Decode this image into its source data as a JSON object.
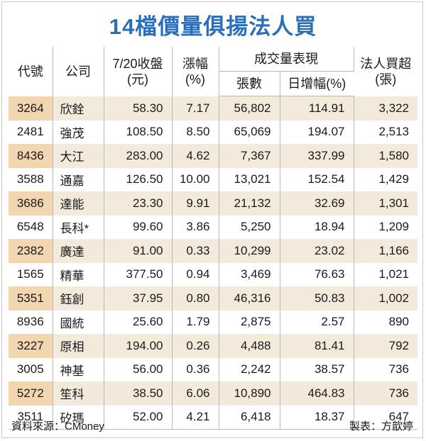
{
  "title": "14檔價量俱揚法人買",
  "headers": {
    "code": "代號",
    "company": "公司",
    "close_line1": "7/20收盤",
    "close_line2": "(元)",
    "change_line1": "漲幅",
    "change_line2": "(%)",
    "volume_group": "成交量表現",
    "volume_lots": "張數",
    "volume_increase": "日增幅(%)",
    "net_buy_line1": "法人買超",
    "net_buy_line2": "(張)"
  },
  "rows": [
    {
      "code": "3264",
      "company": "欣銓",
      "close": "58.30",
      "change": "7.17",
      "lots": "56,802",
      "increase": "114.91",
      "net_buy": "3,322"
    },
    {
      "code": "2481",
      "company": "強茂",
      "close": "108.50",
      "change": "8.50",
      "lots": "65,069",
      "increase": "194.07",
      "net_buy": "2,513"
    },
    {
      "code": "8436",
      "company": "大江",
      "close": "283.00",
      "change": "4.62",
      "lots": "7,367",
      "increase": "337.99",
      "net_buy": "1,580"
    },
    {
      "code": "3588",
      "company": "通嘉",
      "close": "126.50",
      "change": "10.00",
      "lots": "13,021",
      "increase": "152.54",
      "net_buy": "1,429"
    },
    {
      "code": "3686",
      "company": "達能",
      "close": "23.30",
      "change": "9.91",
      "lots": "21,132",
      "increase": "32.69",
      "net_buy": "1,301"
    },
    {
      "code": "6548",
      "company": "長科*",
      "close": "99.60",
      "change": "3.86",
      "lots": "5,250",
      "increase": "18.94",
      "net_buy": "1,209"
    },
    {
      "code": "2382",
      "company": "廣達",
      "close": "91.00",
      "change": "0.33",
      "lots": "10,299",
      "increase": "23.02",
      "net_buy": "1,166"
    },
    {
      "code": "1565",
      "company": "精華",
      "close": "377.50",
      "change": "0.94",
      "lots": "3,469",
      "increase": "76.63",
      "net_buy": "1,021"
    },
    {
      "code": "5351",
      "company": "鈺創",
      "close": "37.95",
      "change": "0.80",
      "lots": "46,316",
      "increase": "50.83",
      "net_buy": "1,002"
    },
    {
      "code": "8936",
      "company": "國統",
      "close": "25.60",
      "change": "1.79",
      "lots": "2,875",
      "increase": "2.57",
      "net_buy": "890"
    },
    {
      "code": "3227",
      "company": "原相",
      "close": "194.00",
      "change": "0.26",
      "lots": "4,488",
      "increase": "81.41",
      "net_buy": "792"
    },
    {
      "code": "3005",
      "company": "神基",
      "close": "56.00",
      "change": "0.36",
      "lots": "2,242",
      "increase": "38.57",
      "net_buy": "736"
    },
    {
      "code": "5272",
      "company": "笙科",
      "close": "38.50",
      "change": "6.06",
      "lots": "10,890",
      "increase": "464.83",
      "net_buy": "736"
    },
    {
      "code": "3511",
      "company": "矽瑪",
      "close": "52.00",
      "change": "4.21",
      "lots": "6,418",
      "increase": "18.37",
      "net_buy": "647"
    }
  ],
  "footer": {
    "source": "資料來源：CMoney",
    "credit": "製表：方歆婷"
  }
}
